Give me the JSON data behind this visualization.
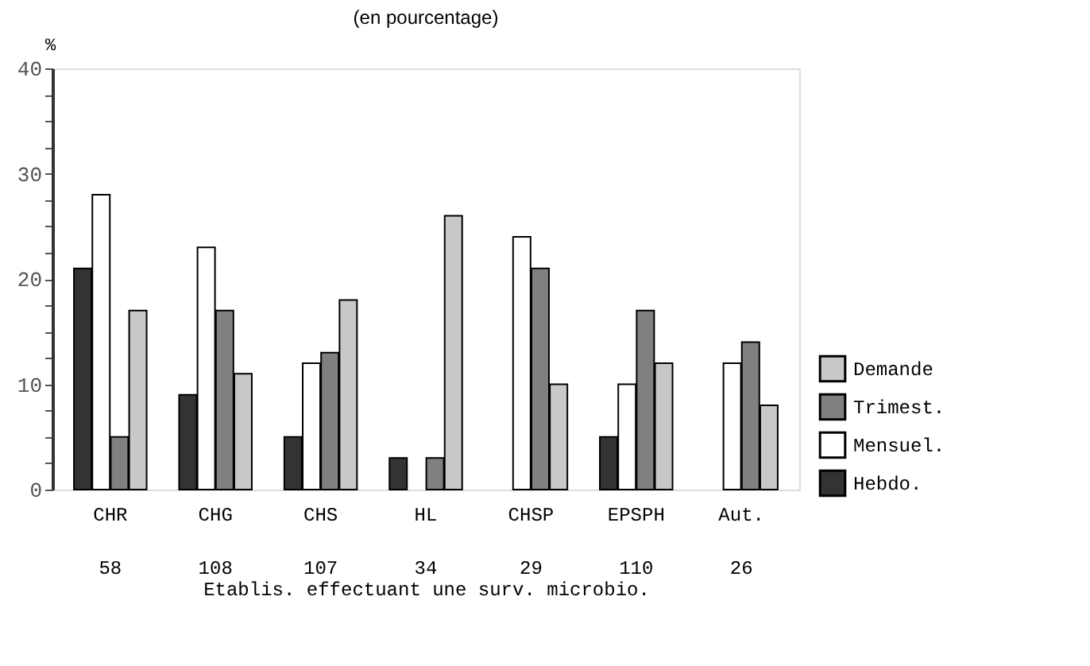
{
  "chart_data": {
    "type": "bar",
    "title": "(en pourcentage)",
    "ylabel": "%",
    "xlabel": "Etablis. effectuant une surv. microbio.",
    "categories": [
      "CHR",
      "CHG",
      "CHS",
      "HL",
      "CHSP",
      "EPSPH",
      "Aut."
    ],
    "series": [
      {
        "name": "Hebdo.",
        "color": "#333333",
        "values": [
          21,
          9,
          5,
          3,
          null,
          5,
          null
        ]
      },
      {
        "name": "Mensuel.",
        "color": "#ffffff",
        "values": [
          28,
          23,
          12,
          null,
          24,
          10,
          12
        ]
      },
      {
        "name": "Trimest.",
        "color": "#808080",
        "values": [
          5,
          17,
          13,
          3,
          21,
          17,
          14
        ]
      },
      {
        "name": "Demande",
        "color": "#c8c8c8",
        "values": [
          17,
          11,
          18,
          26,
          10,
          12,
          8
        ]
      }
    ],
    "ylim": [
      0,
      40
    ],
    "yticks": [
      0,
      {
        "value": 2.5,
        "label": null
      },
      {
        "value": 5,
        "label": null
      },
      {
        "value": 7.5,
        "label": null
      },
      10,
      {
        "value": 12.5,
        "label": null
      },
      {
        "value": 15,
        "label": null
      },
      {
        "value": 17.5,
        "label": null
      },
      20,
      {
        "value": 22.5,
        "label": null
      },
      {
        "value": 25,
        "label": null
      },
      {
        "value": 27.5,
        "label": null
      },
      30,
      {
        "value": 32.5,
        "label": null
      },
      {
        "value": 35,
        "label": null
      },
      {
        "value": 37.5,
        "label": null
      },
      40
    ],
    "annotations": [
      "58",
      "108",
      "107",
      "34",
      "29",
      "110",
      "26"
    ],
    "grid": false,
    "legend": "bottom right"
  }
}
